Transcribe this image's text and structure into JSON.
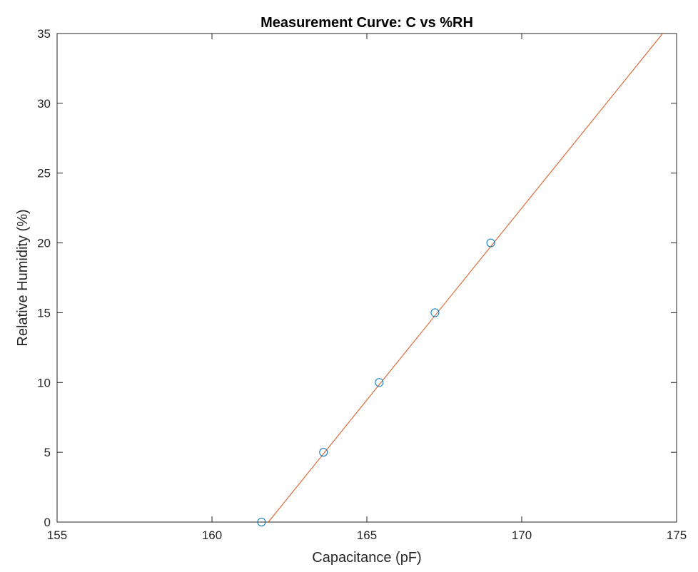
{
  "chart_data": {
    "type": "scatter",
    "title": "Measurement Curve: C vs %RH",
    "xlabel": "Capacitance (pF)",
    "ylabel": "Relative Humidity (%)",
    "xlim": [
      155,
      175
    ],
    "ylim": [
      0,
      35
    ],
    "x_ticks": [
      "155",
      "160",
      "165",
      "170",
      "175"
    ],
    "y_ticks": [
      "0",
      "5",
      "10",
      "15",
      "20",
      "25",
      "30",
      "35"
    ],
    "grid": false,
    "series": [
      {
        "kind": "markers",
        "marker": "circle",
        "color": "#0072BD",
        "x": [
          161.6,
          163.6,
          165.4,
          167.2,
          169.0
        ],
        "y": [
          0,
          5,
          10,
          15,
          20
        ]
      },
      {
        "kind": "line",
        "color": "#D95319",
        "x": [
          161.82,
          174.55
        ],
        "y": [
          0,
          35
        ]
      }
    ]
  }
}
